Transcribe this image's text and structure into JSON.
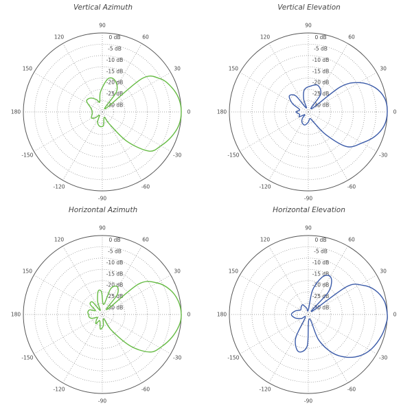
{
  "charts": {
    "va": {
      "title": "Vertical Azimuth"
    },
    "ve": {
      "title": "Vertical Elevation"
    },
    "ha": {
      "title": "Horizontal Azimuth"
    },
    "he": {
      "title": "Horizontal Elevation"
    }
  },
  "chart_data": [
    {
      "type": "polar",
      "key": "va",
      "title": "Vertical Azimuth",
      "color": "#66bb44",
      "radial_labels": [
        "0 dB",
        "-5 dB",
        "-10 dB",
        "-15 dB",
        "-20 dB",
        "-25 dB",
        "-30 dB"
      ],
      "radial_range_db": [
        -35,
        0
      ],
      "angle_labels": [
        "0",
        "30",
        "60",
        "90",
        "120",
        "150",
        "180",
        "-150",
        "-120",
        "-90",
        "-60",
        "-30"
      ],
      "grid": true,
      "pattern": [
        {
          "angle": 0,
          "db": 0
        },
        {
          "angle": 10,
          "db": -0.6
        },
        {
          "angle": 20,
          "db": -2.5
        },
        {
          "angle": 30,
          "db": -5.5
        },
        {
          "angle": 40,
          "db": -12
        },
        {
          "angle": 47,
          "db": -33
        },
        {
          "angle": 55,
          "db": -24
        },
        {
          "angle": 68,
          "db": -20
        },
        {
          "angle": 80,
          "db": -20
        },
        {
          "angle": 95,
          "db": -26
        },
        {
          "angle": 105,
          "db": -30.5
        },
        {
          "angle": 115,
          "db": -29
        },
        {
          "angle": 130,
          "db": -27
        },
        {
          "angle": 145,
          "db": -26.5
        },
        {
          "angle": 160,
          "db": -29.5
        },
        {
          "angle": 175,
          "db": -30.5
        },
        {
          "angle": 180,
          "db": -30.5
        },
        {
          "angle": 190,
          "db": -30.5
        },
        {
          "angle": 200,
          "db": -30
        },
        {
          "angle": 210,
          "db": -29.5
        },
        {
          "angle": 220,
          "db": -31
        },
        {
          "angle": 230,
          "db": -33
        },
        {
          "angle": 245,
          "db": -30
        },
        {
          "angle": 260,
          "db": -28.5
        },
        {
          "angle": 275,
          "db": -29
        },
        {
          "angle": 290,
          "db": -32.5
        },
        {
          "angle": 300,
          "db": -29
        },
        {
          "angle": 310,
          "db": -18
        },
        {
          "angle": 320,
          "db": -8
        },
        {
          "angle": 330,
          "db": -5
        },
        {
          "angle": 340,
          "db": -2.5
        },
        {
          "angle": 350,
          "db": -0.6
        }
      ]
    },
    {
      "type": "polar",
      "key": "ve",
      "title": "Vertical Elevation",
      "color": "#3a5aa8",
      "radial_labels": [
        "0 dB",
        "-5 dB",
        "-10 dB",
        "-15 dB",
        "-20 dB",
        "-25 dB",
        "-30 dB"
      ],
      "radial_range_db": [
        -35,
        0
      ],
      "angle_labels": [
        "0",
        "30",
        "60",
        "90",
        "120",
        "150",
        "180",
        "-150",
        "-120",
        "-90",
        "-60",
        "-30"
      ],
      "grid": true,
      "pattern": [
        {
          "angle": 0,
          "db": 0
        },
        {
          "angle": 10,
          "db": -0.6
        },
        {
          "angle": 20,
          "db": -3.5
        },
        {
          "angle": 30,
          "db": -9
        },
        {
          "angle": 38,
          "db": -17
        },
        {
          "angle": 45,
          "db": -33
        },
        {
          "angle": 55,
          "db": -25.5
        },
        {
          "angle": 70,
          "db": -22.5
        },
        {
          "angle": 85,
          "db": -23.5
        },
        {
          "angle": 100,
          "db": -25
        },
        {
          "angle": 110,
          "db": -29
        },
        {
          "angle": 118,
          "db": -33
        },
        {
          "angle": 128,
          "db": -26
        },
        {
          "angle": 140,
          "db": -24
        },
        {
          "angle": 152,
          "db": -27
        },
        {
          "angle": 165,
          "db": -31
        },
        {
          "angle": 180,
          "db": -29.5
        },
        {
          "angle": 195,
          "db": -31
        },
        {
          "angle": 208,
          "db": -30.5
        },
        {
          "angle": 218,
          "db": -33
        },
        {
          "angle": 228,
          "db": -31
        },
        {
          "angle": 240,
          "db": -29.5
        },
        {
          "angle": 255,
          "db": -29
        },
        {
          "angle": 270,
          "db": -30.5
        },
        {
          "angle": 285,
          "db": -32
        },
        {
          "angle": 297,
          "db": -30
        },
        {
          "angle": 308,
          "db": -22
        },
        {
          "angle": 318,
          "db": -12
        },
        {
          "angle": 330,
          "db": -7.5
        },
        {
          "angle": 340,
          "db": -3.5
        },
        {
          "angle": 350,
          "db": -0.8
        }
      ]
    },
    {
      "type": "polar",
      "key": "ha",
      "title": "Horizontal Azimuth",
      "color": "#66bb44",
      "radial_labels": [
        "0 dB",
        "-5 dB",
        "-10 dB",
        "-15 dB",
        "-20 dB",
        "-25 dB",
        "-30 dB"
      ],
      "radial_range_db": [
        -35,
        0
      ],
      "angle_labels": [
        "0",
        "30",
        "60",
        "90",
        "120",
        "150",
        "180",
        "-150",
        "-120",
        "-90",
        "-60",
        "-30"
      ],
      "grid": true,
      "pattern": [
        {
          "angle": 0,
          "db": 0
        },
        {
          "angle": 10,
          "db": -0.8
        },
        {
          "angle": 20,
          "db": -3
        },
        {
          "angle": 30,
          "db": -7
        },
        {
          "angle": 40,
          "db": -14
        },
        {
          "angle": 47,
          "db": -32
        },
        {
          "angle": 53,
          "db": -24
        },
        {
          "angle": 62,
          "db": -21
        },
        {
          "angle": 72,
          "db": -23
        },
        {
          "angle": 82,
          "db": -30.5
        },
        {
          "angle": 92,
          "db": -25
        },
        {
          "angle": 100,
          "db": -24.5
        },
        {
          "angle": 110,
          "db": -29
        },
        {
          "angle": 118,
          "db": -33
        },
        {
          "angle": 128,
          "db": -28
        },
        {
          "angle": 140,
          "db": -28
        },
        {
          "angle": 150,
          "db": -31.5
        },
        {
          "angle": 160,
          "db": -29
        },
        {
          "angle": 172,
          "db": -28.5
        },
        {
          "angle": 180,
          "db": -29
        },
        {
          "angle": 190,
          "db": -29
        },
        {
          "angle": 200,
          "db": -30
        },
        {
          "angle": 210,
          "db": -32.5
        },
        {
          "angle": 222,
          "db": -31.5
        },
        {
          "angle": 235,
          "db": -30
        },
        {
          "angle": 248,
          "db": -32
        },
        {
          "angle": 262,
          "db": -28.5
        },
        {
          "angle": 275,
          "db": -30
        },
        {
          "angle": 288,
          "db": -33
        },
        {
          "angle": 300,
          "db": -27
        },
        {
          "angle": 312,
          "db": -16
        },
        {
          "angle": 322,
          "db": -8
        },
        {
          "angle": 332,
          "db": -5
        },
        {
          "angle": 342,
          "db": -2.5
        },
        {
          "angle": 352,
          "db": -0.6
        }
      ]
    },
    {
      "type": "polar",
      "key": "he",
      "title": "Horizontal Elevation",
      "color": "#3a5aa8",
      "radial_labels": [
        "0 dB",
        "-5 dB",
        "-10 dB",
        "-15 dB",
        "-20 dB",
        "-25 dB",
        "-30 dB"
      ],
      "radial_range_db": [
        -35,
        0
      ],
      "angle_labels": [
        "0",
        "30",
        "60",
        "90",
        "120",
        "150",
        "180",
        "-150",
        "-120",
        "-90",
        "-60",
        "-30"
      ],
      "grid": true,
      "pattern": [
        {
          "angle": 0,
          "db": 0
        },
        {
          "angle": 10,
          "db": -0.8
        },
        {
          "angle": 20,
          "db": -3.5
        },
        {
          "angle": 28,
          "db": -7.5
        },
        {
          "angle": 36,
          "db": -14
        },
        {
          "angle": 42,
          "db": -33
        },
        {
          "angle": 48,
          "db": -22
        },
        {
          "angle": 55,
          "db": -17
        },
        {
          "angle": 62,
          "db": -15.5
        },
        {
          "angle": 70,
          "db": -17.5
        },
        {
          "angle": 80,
          "db": -24
        },
        {
          "angle": 90,
          "db": -33
        },
        {
          "angle": 105,
          "db": -32
        },
        {
          "angle": 120,
          "db": -30
        },
        {
          "angle": 135,
          "db": -30.5
        },
        {
          "angle": 150,
          "db": -31
        },
        {
          "angle": 165,
          "db": -29
        },
        {
          "angle": 180,
          "db": -27.5
        },
        {
          "angle": 195,
          "db": -29
        },
        {
          "angle": 210,
          "db": -31.5
        },
        {
          "angle": 225,
          "db": -33
        },
        {
          "angle": 242,
          "db": -23
        },
        {
          "angle": 255,
          "db": -18
        },
        {
          "angle": 268,
          "db": -21
        },
        {
          "angle": 282,
          "db": -33
        },
        {
          "angle": 292,
          "db": -23
        },
        {
          "angle": 302,
          "db": -15
        },
        {
          "angle": 312,
          "db": -9.5
        },
        {
          "angle": 322,
          "db": -5.5
        },
        {
          "angle": 332,
          "db": -3
        },
        {
          "angle": 344,
          "db": -1.2
        },
        {
          "angle": 354,
          "db": -0.2
        }
      ]
    }
  ]
}
